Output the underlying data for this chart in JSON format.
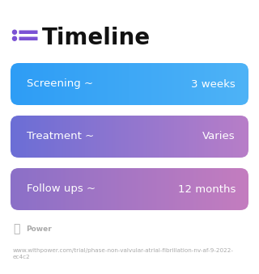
{
  "title": "Timeline",
  "title_fontsize": 20,
  "title_color": "#111111",
  "title_icon_color": "#7B52D4",
  "background_color": "#ffffff",
  "rows": [
    {
      "label": "Screening ~",
      "value": "3 weeks",
      "color_left": "#2E9DF5",
      "color_right": "#4EB3F7"
    },
    {
      "label": "Treatment ~",
      "value": "Varies",
      "color_left": "#6B6ED6",
      "color_right": "#B87EC8"
    },
    {
      "label": "Follow ups ~",
      "value": "12 months",
      "color_left": "#8B70C8",
      "color_right": "#C47DBF"
    }
  ],
  "row_label_fontsize": 9.5,
  "row_value_fontsize": 9.5,
  "footer_text": "Power",
  "url_text": "www.withpower.com/trial/phase-non-valvular-atrial-fibrillation-nv-af-9-2022-\nec4c2",
  "footer_fontsize": 6.5,
  "url_fontsize": 5.2,
  "footer_color": "#aaaaaa"
}
